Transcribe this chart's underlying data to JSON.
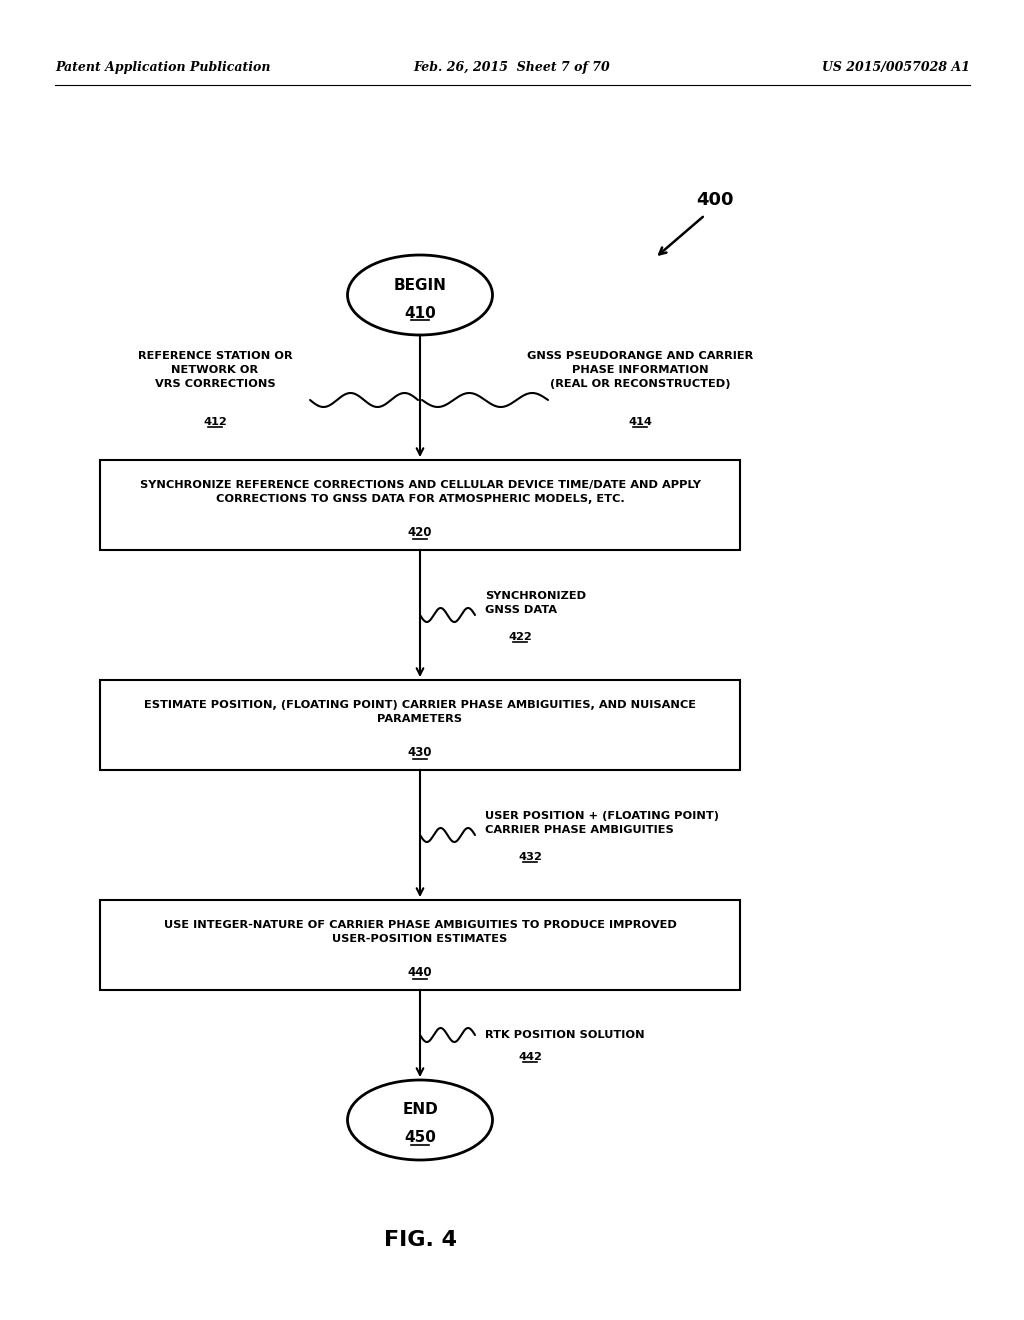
{
  "header_left": "Patent Application Publication",
  "header_mid": "Feb. 26, 2015  Sheet 7 of 70",
  "header_right": "US 2015/0057028 A1",
  "fig_label": "FIG. 4",
  "diagram_label": "400",
  "begin_label": "BEGIN",
  "begin_num": "410",
  "end_label": "END",
  "end_num": "450",
  "box1_text": "SYNCHRONIZE REFERENCE CORRECTIONS AND CELLULAR DEVICE TIME/DATE AND APPLY\nCORRECTIONS TO GNSS DATA FOR ATMOSPHERIC MODELS, ETC.",
  "box1_num": "420",
  "box2_text": "ESTIMATE POSITION, (FLOATING POINT) CARRIER PHASE AMBIGUITIES, AND NUISANCE\nPARAMETERS",
  "box2_num": "430",
  "box3_text": "USE INTEGER-NATURE OF CARRIER PHASE AMBIGUITIES TO PRODUCE IMPROVED\nUSER-POSITION ESTIMATES",
  "box3_num": "440",
  "side_left_text": "REFERENCE STATION OR\nNETWORK OR\nVRS CORRECTIONS",
  "side_left_num": "412",
  "side_right_text": "GNSS PSEUDORANGE AND CARRIER\nPHASE INFORMATION\n(REAL OR RECONSTRUCTED)",
  "side_right_num": "414",
  "data_label1": "SYNCHRONIZED\nGNSS DATA",
  "data_num1": "422",
  "data_label2": "USER POSITION + (FLOATING POINT)\nCARRIER PHASE AMBIGUITIES",
  "data_num2": "432",
  "data_label3": "RTK POSITION SOLUTION",
  "data_num3": "442",
  "bg_color": "#ffffff",
  "text_color": "#000000"
}
